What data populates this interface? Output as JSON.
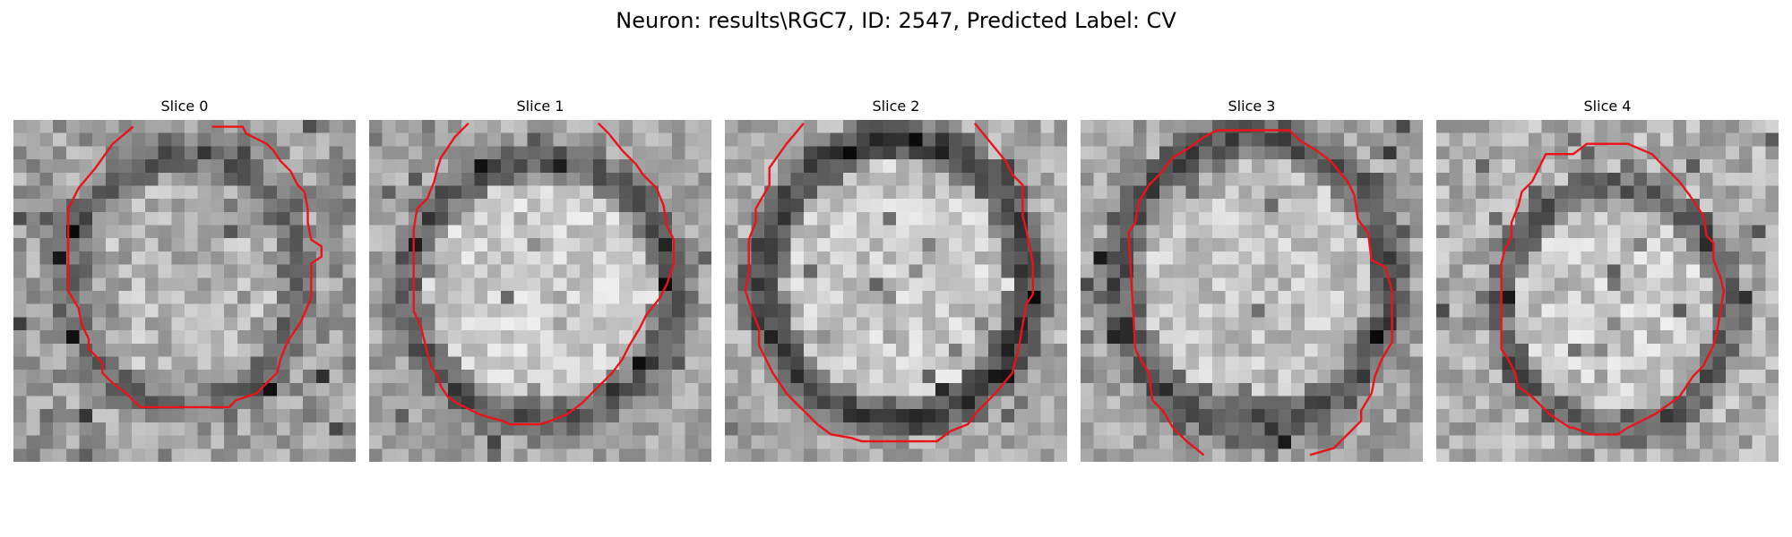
{
  "figure": {
    "title": "Neuron: results\\RGC7, ID: 2547, Predicted Label: CV"
  },
  "colors": {
    "contour": "#e8141a",
    "background": "#ffffff"
  },
  "panels": [
    {
      "label": "Slice 0"
    },
    {
      "label": "Slice 1"
    },
    {
      "label": "Slice 2"
    },
    {
      "label": "Slice 3"
    },
    {
      "label": "Slice 4"
    }
  ]
}
